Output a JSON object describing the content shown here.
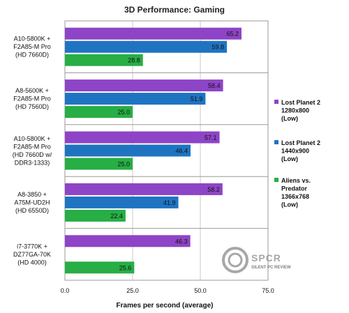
{
  "chart_data": {
    "type": "bar",
    "orientation": "horizontal",
    "title": "3D Performance: Gaming",
    "xlabel": "Frames per second (average)",
    "ylabel": "",
    "xlim": [
      0,
      75
    ],
    "xticks": [
      "0.0",
      "25.0",
      "50.0",
      "75.0"
    ],
    "grid": true,
    "legend_position": "right",
    "categories": [
      "A10-5800K + F2A85-M Pro (HD 7660D)",
      "A8-5600K + F2A85-M Pro (HD 7560D)",
      "A10-5800K + F2A85-M Pro (HD 7660D w/ DDR3-1333)",
      "A8-3850 + A75M-UD2H (HD 6550D)",
      "i7-3770K + DZ77GA-70K (HD 4000)"
    ],
    "category_lines": [
      [
        "A10-5800K +",
        "F2A85-M Pro",
        "(HD 7660D)"
      ],
      [
        "A8-5600K +",
        "F2A85-M Pro",
        "(HD 7560D)"
      ],
      [
        "A10-5800K +",
        "F2A85-M Pro",
        "(HD 7660D w/",
        "DDR3-1333)"
      ],
      [
        "A8-3850 +",
        "A75M-UD2H",
        "(HD 6550D)"
      ],
      [
        "i7-3770K +",
        "DZ77GA-70K",
        "(HD 4000)"
      ]
    ],
    "series": [
      {
        "name": "Lost Planet 2 1280x800 (Low)",
        "legend_lines": [
          "Lost Planet 2",
          "1280x800",
          "(Low)"
        ],
        "color": "#8e44c6",
        "values": [
          65.2,
          58.4,
          57.1,
          58.2,
          46.3
        ]
      },
      {
        "name": "Lost Planet 2 1440x900 (Low)",
        "legend_lines": [
          "Lost Planet 2",
          "1440x900",
          "(Low)"
        ],
        "color": "#1f74c2",
        "values": [
          59.8,
          51.9,
          46.4,
          41.9,
          null
        ]
      },
      {
        "name": "Aliens vs. Predator 1366x768 (Low)",
        "legend_lines": [
          "Aliens vs.",
          "Predator",
          "1366x768",
          "(Low)"
        ],
        "color": "#27ae45",
        "values": [
          28.8,
          25.0,
          25.0,
          22.4,
          25.6
        ]
      }
    ],
    "value_labels": [
      [
        "65.2",
        "58.4",
        "57.1",
        "58.2",
        "46.3"
      ],
      [
        "59.8",
        "51.9",
        "46.4",
        "41.9",
        ""
      ],
      [
        "28.8",
        "25.0",
        "25.0",
        "22.4",
        "25.6"
      ]
    ]
  },
  "watermark": {
    "logo_text": "SPCR",
    "tagline": "SILENT PC REVIEW"
  }
}
